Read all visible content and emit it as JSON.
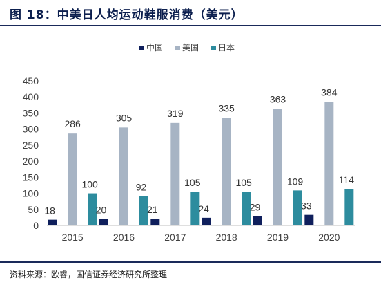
{
  "title": "图 18：中美日人均运动鞋服消费（美元）",
  "source": "资料来源：欧睿，国信证券经济研究所整理",
  "colors": {
    "china": "#0f1f5c",
    "usa": "#a7b4c4",
    "japan": "#2d8c9e",
    "axis": "#bfbfbf",
    "tick_text": "#404040",
    "label_text": "#333333"
  },
  "chart_data": {
    "type": "bar",
    "title": "",
    "xlabel": "",
    "ylabel": "",
    "categories": [
      "2015",
      "2016",
      "2017",
      "2018",
      "2019",
      "2020"
    ],
    "ylim": [
      0,
      450
    ],
    "yticks": [
      0,
      50,
      100,
      150,
      200,
      250,
      300,
      350,
      400,
      450
    ],
    "grid": false,
    "legend": "top-center",
    "series": [
      {
        "name": "中国",
        "color": "#0f1f5c",
        "values": [
          18,
          20,
          21,
          24,
          29,
          33
        ]
      },
      {
        "name": "美国",
        "color": "#a7b4c4",
        "values": [
          286,
          305,
          319,
          335,
          363,
          384
        ]
      },
      {
        "name": "日本",
        "color": "#2d8c9e",
        "values": [
          100,
          92,
          105,
          105,
          109,
          114
        ]
      }
    ]
  }
}
